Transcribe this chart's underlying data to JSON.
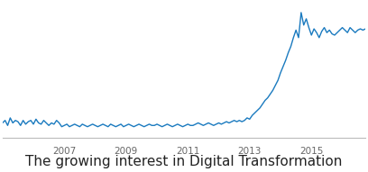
{
  "title": "The growing interest in Digital Transformation",
  "title_fontsize": 11,
  "line_color": "#1a7abf",
  "background_color": "#ffffff",
  "grid_color": "#d0d0d0",
  "x_tick_labels": [
    "2007",
    "2009",
    "2011",
    "2013",
    "2015"
  ],
  "ylim": [
    0,
    108
  ],
  "values": [
    12,
    14,
    10,
    16,
    12,
    14,
    13,
    10,
    14,
    11,
    13,
    14,
    11,
    15,
    12,
    11,
    14,
    12,
    10,
    12,
    11,
    14,
    12,
    9,
    10,
    11,
    9,
    10,
    11,
    10,
    9,
    11,
    10,
    9,
    10,
    11,
    10,
    9,
    10,
    11,
    10,
    9,
    11,
    10,
    9,
    10,
    11,
    9,
    10,
    11,
    10,
    9,
    10,
    11,
    10,
    9,
    10,
    11,
    10,
    10,
    11,
    10,
    9,
    10,
    11,
    10,
    9,
    10,
    11,
    10,
    9,
    10,
    11,
    10,
    10,
    11,
    12,
    11,
    10,
    11,
    12,
    11,
    10,
    11,
    12,
    11,
    12,
    13,
    12,
    13,
    14,
    13,
    14,
    13,
    14,
    16,
    15,
    18,
    20,
    22,
    24,
    27,
    30,
    32,
    35,
    38,
    42,
    46,
    52,
    57,
    62,
    68,
    73,
    80,
    86,
    80,
    100,
    90,
    95,
    88,
    82,
    87,
    84,
    80,
    85,
    88,
    84,
    86,
    83,
    82,
    84,
    86,
    88,
    86,
    84,
    88,
    86,
    84,
    86,
    87,
    86,
    87
  ]
}
